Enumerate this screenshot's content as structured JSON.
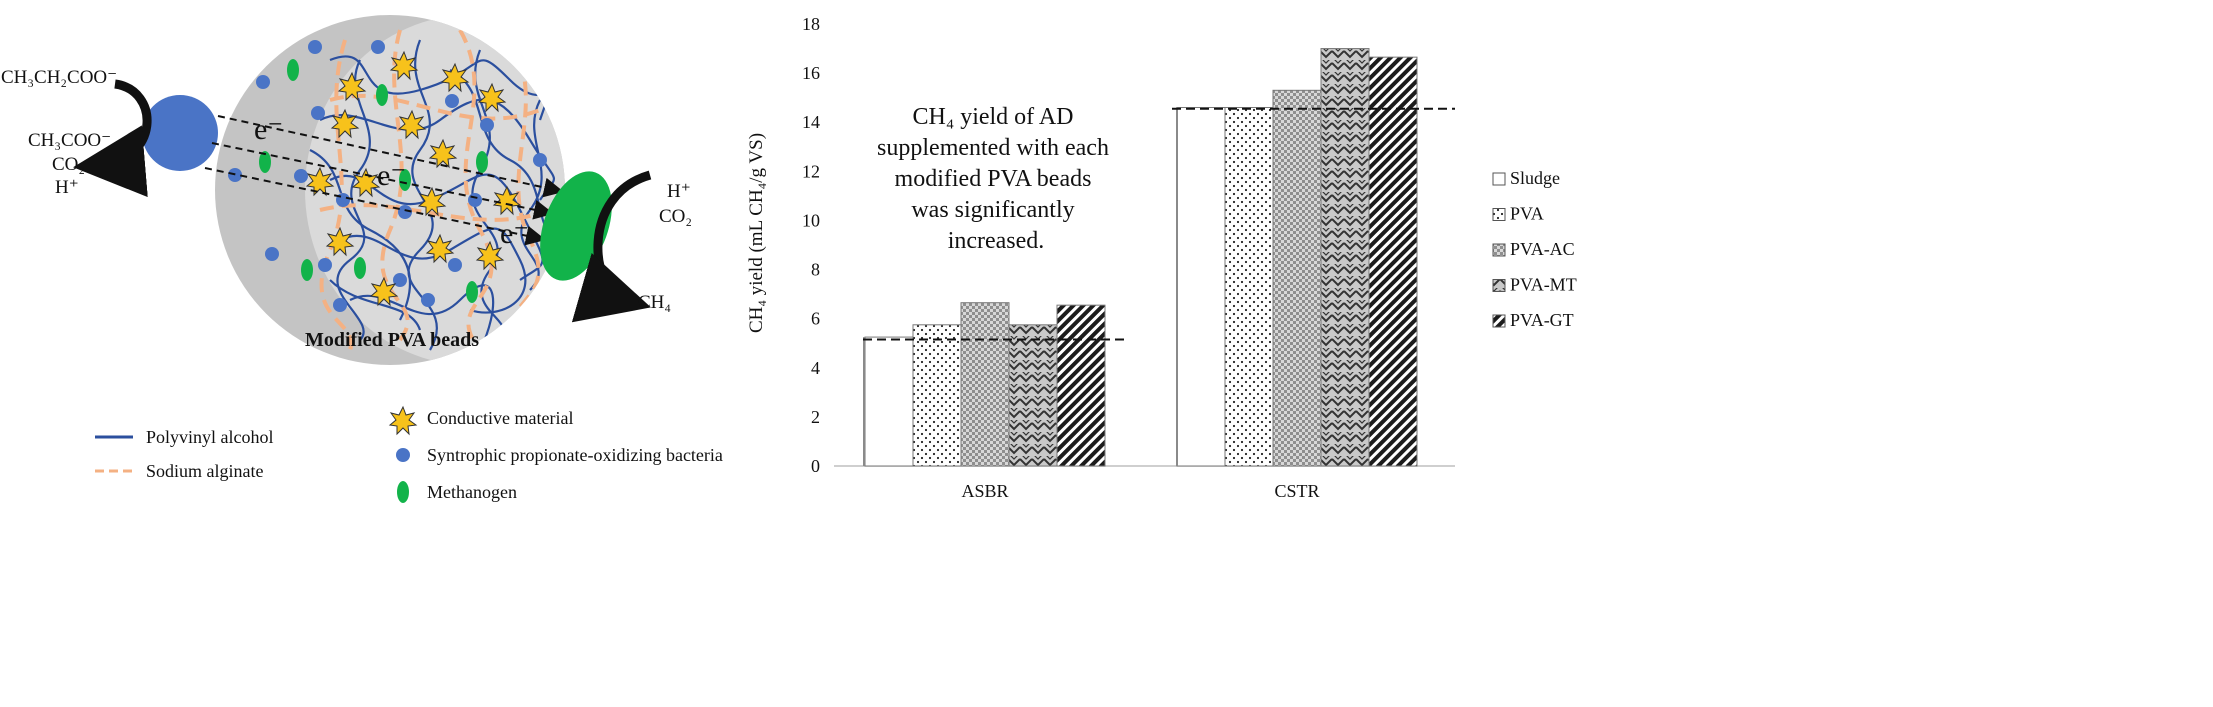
{
  "diagram": {
    "title": "Modified PVA beads",
    "left_substrate": "CH₃CH₂COO⁻",
    "left_products": [
      "CH₃COO⁻",
      "CO₂",
      "H⁺"
    ],
    "right_substrates": [
      "H⁺",
      "CO₂"
    ],
    "right_product": "CH₄",
    "electron_label": "e⁻",
    "legend": [
      {
        "icon": "line-solid",
        "color": "#2b4f9e",
        "label": "Polyvinyl alcohol"
      },
      {
        "icon": "line-dashed",
        "color": "#f4b183",
        "label": "Sodium alginate"
      },
      {
        "icon": "star",
        "color": "#f7c21b",
        "label": "Conductive material"
      },
      {
        "icon": "blue-dot",
        "color": "#4a74c6",
        "label": "Syntrophic propionate-oxidizing bacteria"
      },
      {
        "icon": "green-ellipse",
        "color": "#12b34a",
        "label": "Methanogen"
      }
    ]
  },
  "chart_data": {
    "type": "bar",
    "ylabel": "CH₄ yield (mL CH₄/g VS)",
    "ylim": [
      0,
      18
    ],
    "yticks": [
      0,
      2,
      4,
      6,
      8,
      10,
      12,
      14,
      16,
      18
    ],
    "categories": [
      "ASBR",
      "CSTR"
    ],
    "series": [
      {
        "name": "Sludge",
        "pattern": "plain",
        "values": [
          5.25,
          14.6
        ]
      },
      {
        "name": "PVA",
        "pattern": "dots",
        "values": [
          5.75,
          14.6
        ]
      },
      {
        "name": "PVA-AC",
        "pattern": "checker",
        "values": [
          6.65,
          15.3
        ]
      },
      {
        "name": "PVA-MT",
        "pattern": "zigzag",
        "values": [
          5.75,
          17.0
        ]
      },
      {
        "name": "PVA-GT",
        "pattern": "diagonal",
        "values": [
          6.55,
          16.65
        ]
      }
    ],
    "reference_lines": [
      5.15,
      14.55
    ],
    "annotation": [
      "CH₄ yield of AD",
      "supplemented with each",
      "modified PVA beads",
      "was significantly",
      "increased."
    ],
    "grid": false,
    "legend_position": "right"
  }
}
